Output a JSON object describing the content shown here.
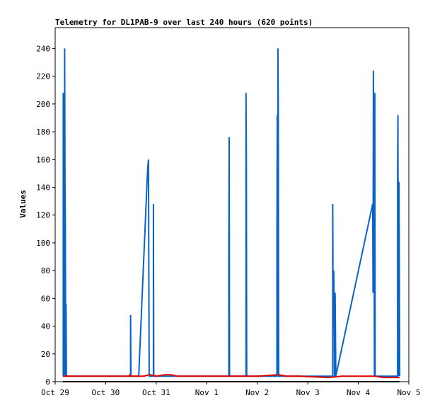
{
  "chart_data": {
    "type": "line",
    "title": "Telemetry for DL1PAB-9 over last 240 hours (620 points)",
    "ylabel": "Values",
    "xlabel": "",
    "xlim": [
      "2023-10-29T00:00",
      "2023-11-05T00:00"
    ],
    "ylim": [
      0,
      255
    ],
    "x_ticks": [
      "Oct 29",
      "Oct 30",
      "Oct 31",
      "Nov 1",
      "Nov 2",
      "Nov 3",
      "Nov 4",
      "Nov 5"
    ],
    "y_ticks": [
      0,
      20,
      40,
      60,
      80,
      100,
      120,
      140,
      160,
      180,
      200,
      220,
      240
    ],
    "grid": false,
    "colors": {
      "blue": "#0a64c8",
      "red": "#e00000",
      "black": "#000000"
    },
    "series": [
      {
        "color": "#0a64c8",
        "points": [
          [
            "2023-10-29T03:50",
            4
          ],
          [
            "2023-10-29T03:50",
            208
          ],
          [
            "2023-10-29T04:00",
            104
          ],
          [
            "2023-10-29T04:10",
            193
          ],
          [
            "2023-10-29T04:20",
            4
          ],
          [
            "2023-10-29T04:30",
            240
          ],
          [
            "2023-10-29T04:40",
            145
          ],
          [
            "2023-10-29T04:50",
            112
          ],
          [
            "2023-10-29T05:00",
            4
          ],
          [
            "2023-10-29T05:10",
            56
          ],
          [
            "2023-10-29T05:20",
            4
          ],
          [
            "2023-10-30T11:50",
            4
          ],
          [
            "2023-10-30T11:50",
            48
          ],
          [
            "2023-10-30T12:00",
            4
          ],
          [
            "2023-10-30T15:40",
            4
          ],
          [
            "2023-10-30T19:40",
            145
          ],
          [
            "2023-10-30T20:00",
            155
          ],
          [
            "2023-10-30T20:20",
            160
          ],
          [
            "2023-10-30T20:40",
            4
          ],
          [
            "2023-10-30T22:40",
            4
          ],
          [
            "2023-10-30T22:40",
            128
          ],
          [
            "2023-10-30T22:50",
            4
          ],
          [
            "2023-11-01T10:30",
            4
          ],
          [
            "2023-11-01T10:30",
            88
          ],
          [
            "2023-11-01T10:40",
            176
          ],
          [
            "2023-11-01T10:50",
            4
          ],
          [
            "2023-11-01T18:40",
            4
          ],
          [
            "2023-11-01T18:40",
            208
          ],
          [
            "2023-11-01T18:50",
            160
          ],
          [
            "2023-11-01T19:00",
            4
          ],
          [
            "2023-11-02T09:20",
            4
          ],
          [
            "2023-11-02T09:20",
            96
          ],
          [
            "2023-11-02T09:30",
            192
          ],
          [
            "2023-11-02T09:40",
            4
          ],
          [
            "2023-11-02T09:50",
            240
          ],
          [
            "2023-11-02T10:00",
            192
          ],
          [
            "2023-11-02T10:10",
            4
          ],
          [
            "2023-11-03T11:50",
            4
          ],
          [
            "2023-11-03T11:50",
            128
          ],
          [
            "2023-11-03T12:00",
            64
          ],
          [
            "2023-11-03T12:10",
            40
          ],
          [
            "2023-11-03T12:20",
            80
          ],
          [
            "2023-11-03T12:30",
            64
          ],
          [
            "2023-11-03T12:40",
            4
          ],
          [
            "2023-11-03T13:00",
            64
          ],
          [
            "2023-11-03T13:20",
            4
          ],
          [
            "2023-11-04T06:50",
            128
          ],
          [
            "2023-11-04T07:00",
            64
          ],
          [
            "2023-11-04T07:10",
            224
          ],
          [
            "2023-11-04T07:20",
            176
          ],
          [
            "2023-11-04T07:30",
            112
          ],
          [
            "2023-11-04T07:40",
            4
          ],
          [
            "2023-11-04T07:50",
            208
          ],
          [
            "2023-11-04T08:00",
            4
          ],
          [
            "2023-11-04T18:40",
            4
          ],
          [
            "2023-11-04T18:40",
            144
          ],
          [
            "2023-11-04T18:50",
            192
          ],
          [
            "2023-11-04T19:00",
            4
          ],
          [
            "2023-11-04T19:10",
            24
          ],
          [
            "2023-11-04T19:20",
            144
          ],
          [
            "2023-11-04T19:30",
            80
          ],
          [
            "2023-11-04T19:40",
            4
          ]
        ]
      },
      {
        "color": "#e00000",
        "points": [
          [
            "2023-10-29T03:40",
            4
          ],
          [
            "2023-10-29T12:00",
            4
          ],
          [
            "2023-10-30T00:00",
            4
          ],
          [
            "2023-10-30T11:00",
            4
          ],
          [
            "2023-10-30T11:30",
            5
          ],
          [
            "2023-10-30T12:00",
            4
          ],
          [
            "2023-10-30T18:00",
            4
          ],
          [
            "2023-10-30T21:00",
            5
          ],
          [
            "2023-10-31T00:00",
            4
          ],
          [
            "2023-10-31T04:00",
            5
          ],
          [
            "2023-10-31T07:00",
            5
          ],
          [
            "2023-10-31T10:00",
            4
          ],
          [
            "2023-10-31T13:00",
            4
          ],
          [
            "2023-11-01T00:00",
            4
          ],
          [
            "2023-11-01T12:00",
            4
          ],
          [
            "2023-11-02T00:00",
            4
          ],
          [
            "2023-11-02T10:00",
            5
          ],
          [
            "2023-11-02T14:00",
            4
          ],
          [
            "2023-11-02T20:00",
            4
          ],
          [
            "2023-11-03T10:00",
            3
          ],
          [
            "2023-11-03T16:00",
            4
          ],
          [
            "2023-11-04T00:00",
            4
          ],
          [
            "2023-11-04T08:00",
            4
          ],
          [
            "2023-11-04T12:00",
            3
          ],
          [
            "2023-11-04T18:30",
            3
          ],
          [
            "2023-11-04T19:40",
            3
          ]
        ]
      },
      {
        "color": "#000000",
        "points": [
          [
            "2023-10-29T03:40",
            0
          ],
          [
            "2023-11-04T19:40",
            0
          ]
        ]
      }
    ]
  }
}
